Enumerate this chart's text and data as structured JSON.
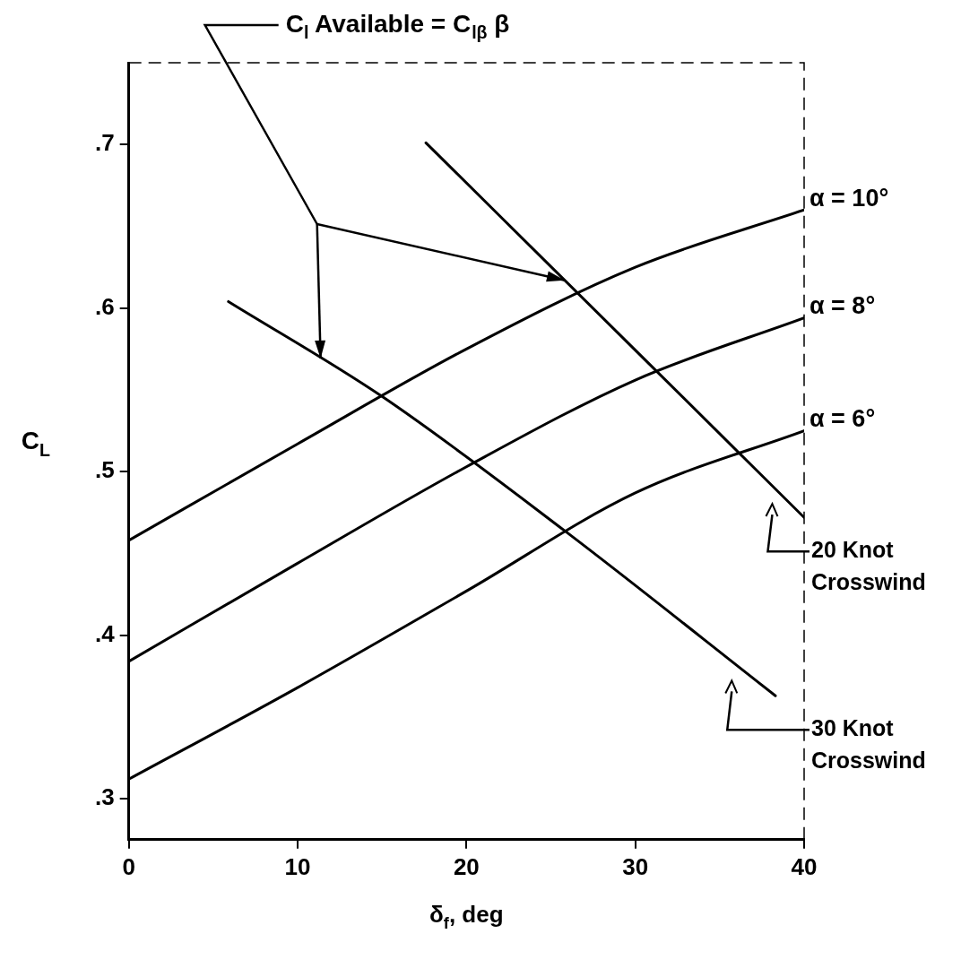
{
  "chart_data": {
    "type": "line",
    "xlabel": "δ$_{f}$, deg",
    "ylabel": "C$_{L}$",
    "annotations": [
      "C$_{l}$ Available = C$_{lβ}$ β"
    ],
    "xlim": [
      0,
      40
    ],
    "xticks": [
      0,
      10,
      20,
      30,
      40
    ],
    "ylim": [
      0.275,
      0.75
    ],
    "yticks": [
      {
        "value": 0.3,
        "label": ".3"
      },
      {
        "value": 0.4,
        "label": ".4"
      },
      {
        "value": 0.5,
        "label": ".5"
      },
      {
        "value": 0.6,
        "label": ".6"
      },
      {
        "value": 0.7,
        "label": ".7"
      }
    ],
    "grid": false,
    "legend": false,
    "marker": "none",
    "line_style": "solid",
    "series": [
      {
        "name": "α = 10°",
        "color": "#000000",
        "x": [
          0,
          10,
          20,
          30,
          40
        ],
        "values": [
          0.458,
          0.517,
          0.575,
          0.625,
          0.66
        ]
      },
      {
        "name": "α = 8°",
        "color": "#000000",
        "x": [
          0,
          10,
          20,
          30,
          40
        ],
        "values": [
          0.384,
          0.444,
          0.503,
          0.556,
          0.594
        ]
      },
      {
        "name": "α = 6°",
        "color": "#000000",
        "x": [
          0,
          10,
          20,
          30,
          40
        ],
        "values": [
          0.312,
          0.368,
          0.427,
          0.487,
          0.525
        ]
      },
      {
        "name": "20 Knot Crosswind",
        "color": "#000000",
        "x": [
          17.6,
          31.3,
          40
        ],
        "values": [
          0.701,
          0.561,
          0.472
        ]
      },
      {
        "name": "30 Knot Crosswind",
        "color": "#000000",
        "x": [
          5.9,
          15,
          25.8,
          38.3
        ],
        "values": [
          0.604,
          0.546,
          0.464,
          0.363
        ]
      }
    ]
  }
}
